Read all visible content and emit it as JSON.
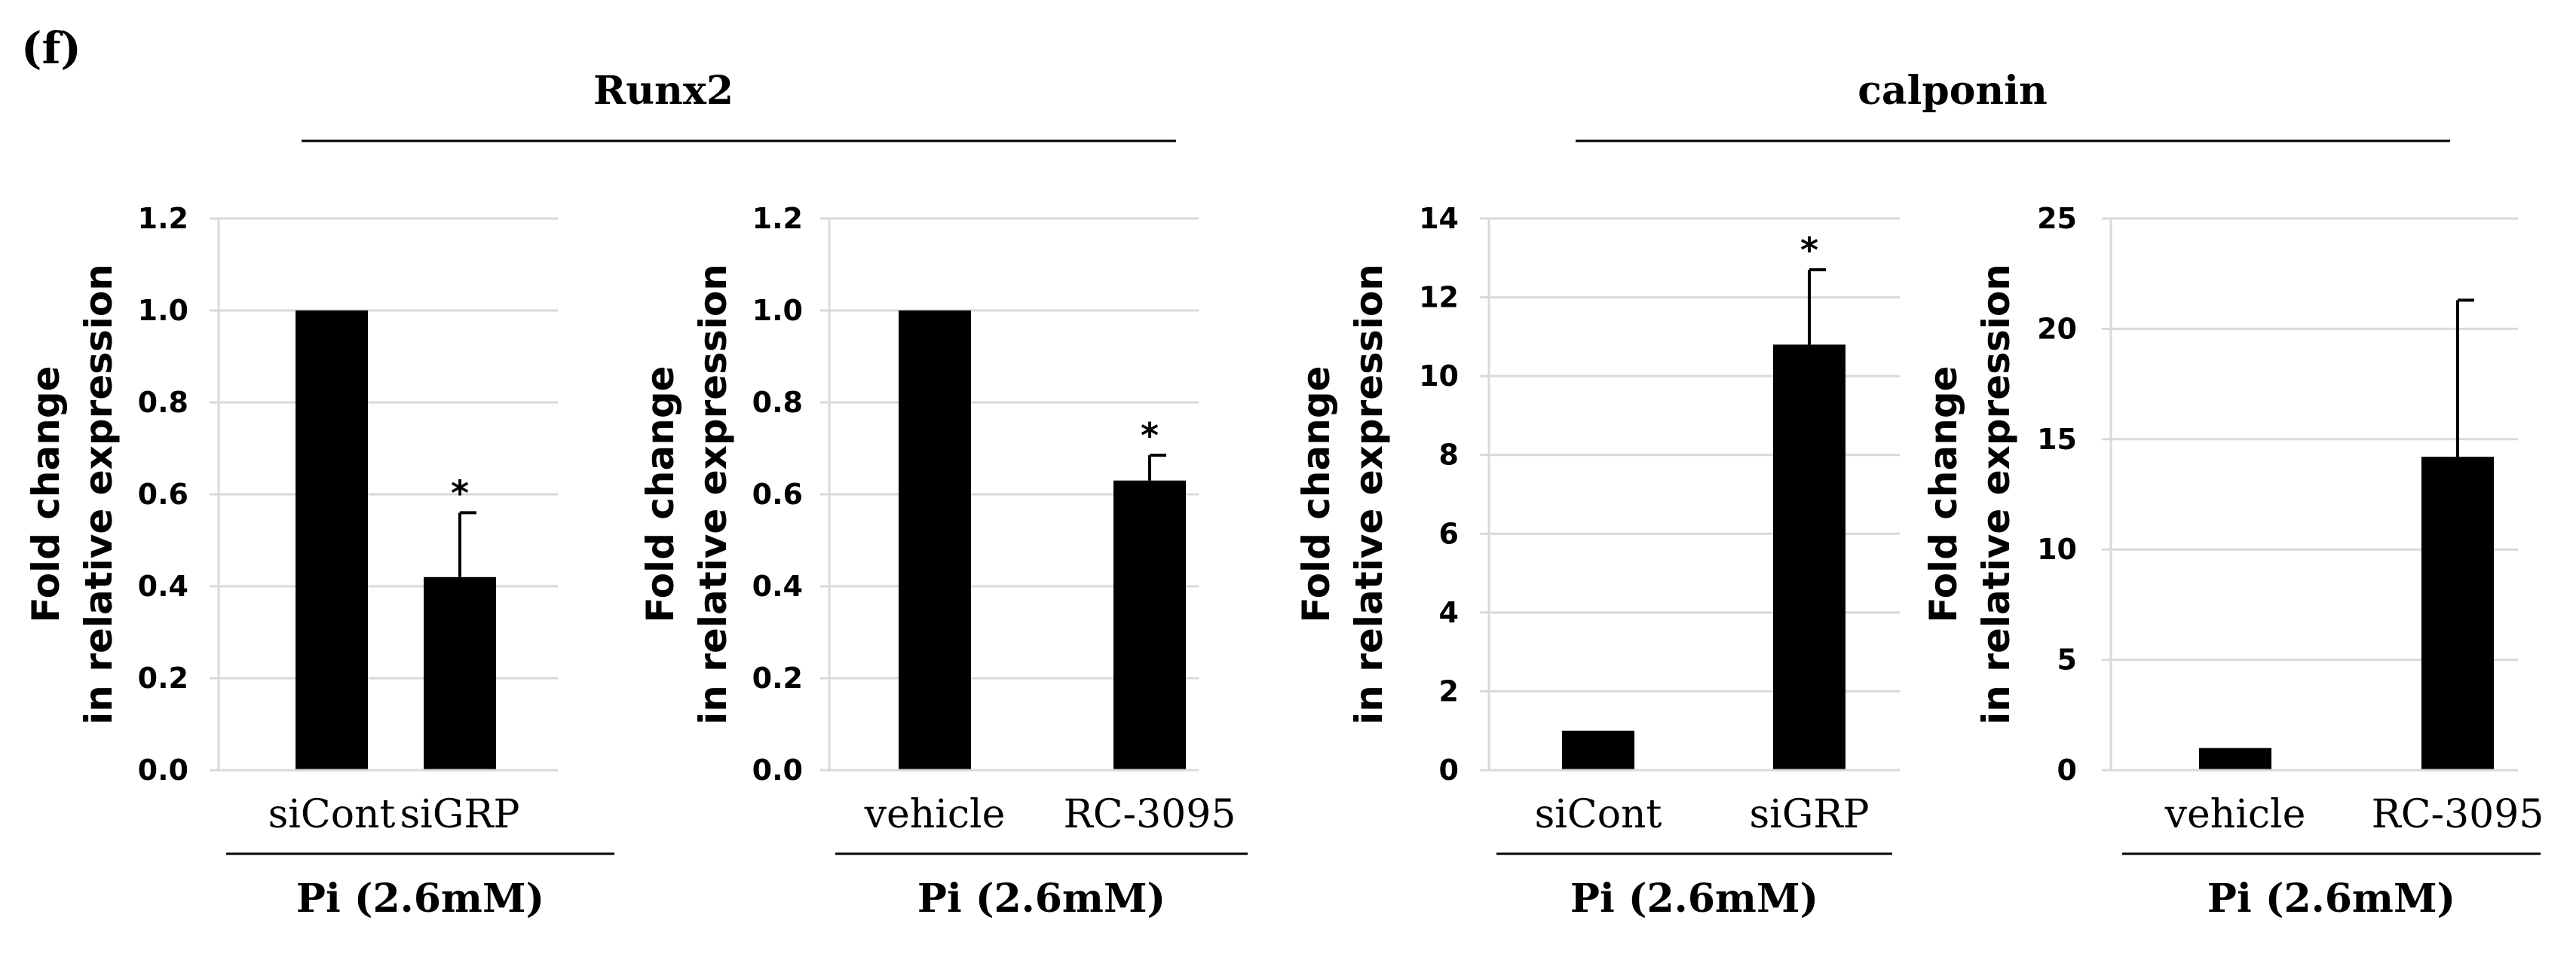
{
  "panel_label": "(f)",
  "groups": [
    {
      "title": "Runx2"
    },
    {
      "title": "calponin"
    }
  ],
  "chart_data": [
    {
      "type": "bar",
      "group": "Runx2",
      "categories": [
        "siCont",
        "siGRP"
      ],
      "values": [
        1.0,
        0.42
      ],
      "errors": [
        0,
        0.14
      ],
      "significance": [
        "",
        "*"
      ],
      "ylabel": [
        "Fold change",
        "in relative expression"
      ],
      "condition": "Pi (2.6mM)",
      "ylim": [
        0,
        1.2
      ],
      "yticks": [
        0.0,
        0.2,
        0.4,
        0.6,
        0.8,
        1.0,
        1.2
      ],
      "ytick_labels": [
        "0.0",
        "0.2",
        "0.4",
        "0.6",
        "0.8",
        "1.0",
        "1.2"
      ],
      "grid": true
    },
    {
      "type": "bar",
      "group": "Runx2",
      "categories": [
        "vehicle",
        "RC-3095"
      ],
      "values": [
        1.0,
        0.63
      ],
      "errors": [
        0,
        0.055
      ],
      "significance": [
        "",
        "*"
      ],
      "ylabel": [
        "Fold change",
        "in relative expression"
      ],
      "condition": "Pi (2.6mM)",
      "ylim": [
        0,
        1.2
      ],
      "yticks": [
        0.0,
        0.2,
        0.4,
        0.6,
        0.8,
        1.0,
        1.2
      ],
      "ytick_labels": [
        "0.0",
        "0.2",
        "0.4",
        "0.6",
        "0.8",
        "1.0",
        "1.2"
      ],
      "grid": true
    },
    {
      "type": "bar",
      "group": "calponin",
      "categories": [
        "siCont",
        "siGRP"
      ],
      "values": [
        1.0,
        10.8
      ],
      "errors": [
        0,
        1.9
      ],
      "significance": [
        "",
        "*"
      ],
      "ylabel": [
        "Fold change",
        "in relative expression"
      ],
      "condition": "Pi (2.6mM)",
      "ylim": [
        0,
        14
      ],
      "yticks": [
        0,
        2,
        4,
        6,
        8,
        10,
        12,
        14
      ],
      "ytick_labels": [
        "0",
        "2",
        "4",
        "6",
        "8",
        "10",
        "12",
        "14"
      ],
      "grid": true
    },
    {
      "type": "bar",
      "group": "calponin",
      "categories": [
        "vehicle",
        "RC-3095"
      ],
      "values": [
        1.0,
        14.2
      ],
      "errors": [
        0,
        7.1
      ],
      "significance": [
        "",
        ""
      ],
      "ylabel": [
        "Fold change",
        "in relative expression"
      ],
      "condition": "Pi (2.6mM)",
      "ylim": [
        0,
        25
      ],
      "yticks": [
        0,
        5,
        10,
        15,
        20,
        25
      ],
      "ytick_labels": [
        "0",
        "5",
        "10",
        "15",
        "20",
        "25"
      ],
      "grid": true
    }
  ],
  "colors": {
    "bar": "#000000",
    "grid": "#d9d9d9",
    "axis": "#d9d9d9",
    "text": "#000000",
    "rule": "#000000"
  }
}
